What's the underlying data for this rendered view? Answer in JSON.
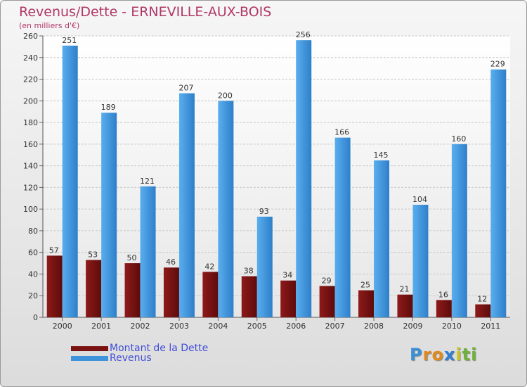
{
  "chart_data": {
    "type": "bar",
    "title": "Revenus/Dette - ERNEVILLE-AUX-BOIS",
    "subtitle": "(en milliers d'€)",
    "xlabel": "",
    "ylabel": "",
    "ylim": [
      0,
      260
    ],
    "yticks": [
      0,
      20,
      40,
      60,
      80,
      100,
      120,
      140,
      160,
      180,
      200,
      220,
      240,
      260
    ],
    "grid": true,
    "legend_position": "bottom-left",
    "categories": [
      "2000",
      "2001",
      "2002",
      "2003",
      "2004",
      "2005",
      "2006",
      "2007",
      "2008",
      "2009",
      "2010",
      "2011"
    ],
    "series": [
      {
        "name": "Montant de la Dette",
        "color": "#7a1212",
        "values": [
          57,
          53,
          50,
          46,
          42,
          38,
          34,
          29,
          25,
          21,
          16,
          12
        ]
      },
      {
        "name": "Revenus",
        "color": "#3e93da",
        "values": [
          251,
          189,
          121,
          207,
          200,
          93,
          256,
          166,
          145,
          104,
          160,
          229
        ]
      }
    ]
  },
  "logo": {
    "text": "Proxiti",
    "letters": [
      "P",
      "r",
      "o",
      "x",
      "i",
      "t",
      "i"
    ],
    "colors": [
      "#3a8fd6",
      "#e08a1e",
      "#e08a1e",
      "#2f7fd0",
      "#c8c61e",
      "#6fb23a",
      "#6fb23a"
    ]
  }
}
